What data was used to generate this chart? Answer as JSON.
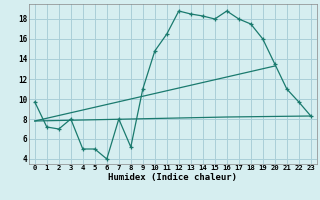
{
  "xlabel": "Humidex (Indice chaleur)",
  "x_ticks": [
    0,
    1,
    2,
    3,
    4,
    5,
    6,
    7,
    8,
    9,
    10,
    11,
    12,
    13,
    14,
    15,
    16,
    17,
    18,
    19,
    20,
    21,
    22,
    23
  ],
  "y_ticks": [
    4,
    6,
    8,
    10,
    12,
    14,
    16,
    18
  ],
  "xlim": [
    -0.5,
    23.5
  ],
  "ylim": [
    3.5,
    19.5
  ],
  "bg_color": "#d6eef0",
  "grid_color": "#aacfd8",
  "line_color": "#1a7a6e",
  "series1_x": [
    0,
    1,
    2,
    3,
    4,
    5,
    6,
    7,
    8,
    9,
    10,
    11,
    12,
    13,
    14,
    15,
    16,
    17,
    18,
    19,
    20,
    21,
    22,
    23
  ],
  "series1_y": [
    9.7,
    7.2,
    7.0,
    8.0,
    5.0,
    5.0,
    4.0,
    8.0,
    5.2,
    11.0,
    14.8,
    16.5,
    18.8,
    18.5,
    18.3,
    18.0,
    18.8,
    18.0,
    17.5,
    16.0,
    13.5,
    11.0,
    9.7,
    8.3
  ],
  "series2_x": [
    0,
    16,
    23
  ],
  "series2_y": [
    7.8,
    8.2,
    8.3
  ],
  "series3_x": [
    0,
    20
  ],
  "series3_y": [
    7.8,
    13.3
  ]
}
